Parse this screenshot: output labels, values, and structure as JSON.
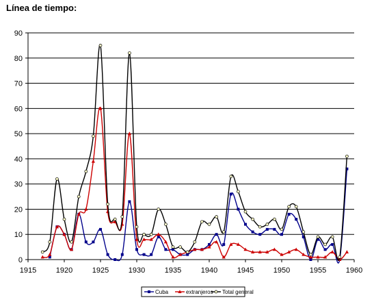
{
  "title": "Línea de tiempo:",
  "chart_data": {
    "type": "line",
    "xlim": [
      1915,
      1960
    ],
    "ylim": [
      0,
      90
    ],
    "xticks": [
      1915,
      1920,
      1925,
      1930,
      1935,
      1940,
      1945,
      1950,
      1955,
      1960
    ],
    "yticks": [
      0,
      10,
      20,
      30,
      40,
      50,
      60,
      70,
      80,
      90
    ],
    "grid": "horizontal",
    "legend_position": "bottom",
    "series": [
      {
        "name": "Cuba",
        "color": "#00008b",
        "marker": "square",
        "x": [
          1918,
          1919,
          1920,
          1921,
          1922,
          1923,
          1924,
          1925,
          1926,
          1927,
          1928,
          1929,
          1930,
          1931,
          1932,
          1933,
          1934,
          1935,
          1936,
          1937,
          1938,
          1939,
          1940,
          1941,
          1942,
          1943,
          1944,
          1945,
          1946,
          1947,
          1948,
          1949,
          1950,
          1951,
          1952,
          1953,
          1954,
          1955,
          1956,
          1957,
          1958,
          1959
        ],
        "y": [
          1,
          13,
          10,
          4,
          18,
          7,
          7,
          12,
          2,
          0,
          2,
          23,
          4,
          2,
          2,
          9,
          4,
          4,
          2,
          2,
          4,
          4,
          6,
          10,
          6,
          26,
          20,
          14,
          11,
          10,
          12,
          12,
          10,
          18,
          16,
          9,
          0,
          8,
          4,
          6,
          0,
          36
        ]
      },
      {
        "name": "extranjeros",
        "color": "#cc0000",
        "marker": "triangle",
        "x": [
          1917,
          1918,
          1919,
          1920,
          1921,
          1922,
          1923,
          1924,
          1925,
          1926,
          1927,
          1928,
          1929,
          1930,
          1931,
          1932,
          1933,
          1934,
          1935,
          1936,
          1937,
          1938,
          1939,
          1940,
          1941,
          1942,
          1943,
          1944,
          1945,
          1946,
          1947,
          1948,
          1949,
          1950,
          1951,
          1952,
          1953,
          1954,
          1955,
          1956,
          1957,
          1958,
          1959
        ],
        "y": [
          1,
          2,
          13,
          10,
          4,
          18,
          20,
          39,
          60,
          19,
          15,
          14,
          50,
          8,
          8,
          8,
          10,
          7,
          1,
          2,
          3,
          4,
          4,
          5,
          7,
          1,
          6,
          6,
          4,
          3,
          3,
          3,
          4,
          2,
          3,
          4,
          2,
          1,
          1,
          1,
          3,
          0,
          3
        ]
      },
      {
        "name": "Total general",
        "color": "#000000",
        "marker": "circle",
        "x": [
          1917,
          1918,
          1919,
          1920,
          1921,
          1922,
          1923,
          1924,
          1925,
          1926,
          1927,
          1928,
          1929,
          1930,
          1931,
          1932,
          1933,
          1934,
          1935,
          1936,
          1937,
          1938,
          1939,
          1940,
          1941,
          1942,
          1943,
          1944,
          1945,
          1946,
          1947,
          1948,
          1949,
          1950,
          1951,
          1952,
          1953,
          1954,
          1955,
          1956,
          1957,
          1958,
          1959
        ],
        "y": [
          3,
          7,
          32,
          16,
          7,
          25,
          35,
          49,
          85,
          22,
          16,
          17,
          82,
          13,
          10,
          10,
          20,
          14,
          5,
          5,
          3,
          7,
          15,
          14,
          17,
          11,
          33,
          27,
          19,
          16,
          13,
          14,
          16,
          12,
          21,
          21,
          11,
          2,
          9,
          6,
          9,
          1,
          41
        ]
      }
    ]
  }
}
